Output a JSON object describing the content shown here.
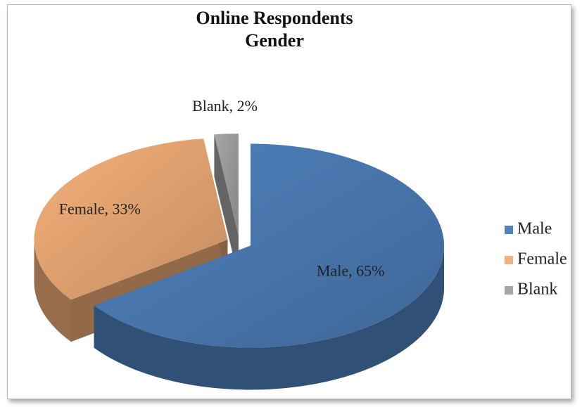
{
  "chart_data": {
    "type": "pie",
    "title": "Online Respondents Gender",
    "categories": [
      "Male",
      "Female",
      "Blank"
    ],
    "values": [
      65,
      33,
      2
    ],
    "value_labels": [
      "Male, 65%",
      "Female, 33%",
      "Blank, 2%"
    ],
    "colors": [
      "#4f81bd",
      "#f5b07a",
      "#a6a6a6"
    ],
    "legend": "right"
  }
}
